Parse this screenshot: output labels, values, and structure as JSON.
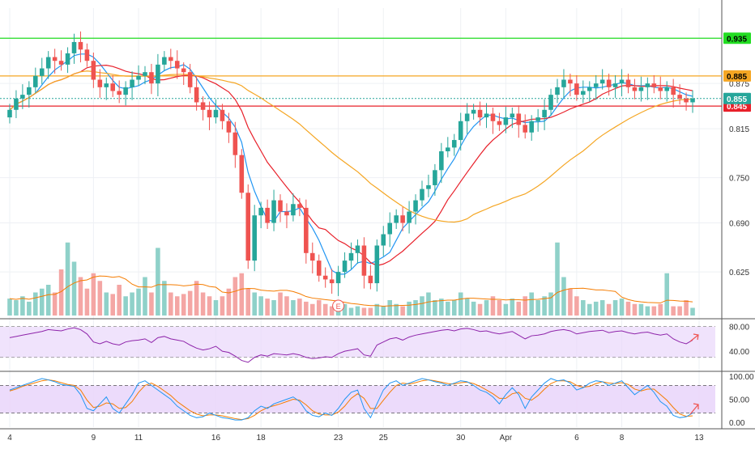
{
  "chart_data": {
    "type": "candlestick",
    "price_axis": {
      "ticks": [
        "0.935",
        "0.875",
        "0.815",
        "0.750",
        "0.690",
        "0.625"
      ],
      "tick_values": [
        0.935,
        0.875,
        0.815,
        0.75,
        0.69,
        0.625
      ],
      "ylim": [
        0.565,
        0.975
      ]
    },
    "x_labels": [
      "4",
      "9",
      "11",
      "16",
      "18",
      "23",
      "25",
      "30",
      "Apr",
      "6",
      "8",
      "13"
    ],
    "x_label_index": [
      0,
      13,
      20,
      32,
      39,
      51,
      58,
      70,
      77,
      88,
      95,
      107
    ],
    "horizontal_levels": [
      {
        "value": 0.935,
        "label": "0.935",
        "color": "#22dd22",
        "text_color": "#000000"
      },
      {
        "value": 0.885,
        "label": "0.885",
        "color": "#f5a623",
        "text_color": "#000000"
      },
      {
        "value": 0.845,
        "label": "0.845",
        "color": "#e8202a",
        "text_color": "#ffffff"
      }
    ],
    "last_price": {
      "value": 0.855,
      "label": "0.855",
      "color": "#26a69a"
    },
    "earnings_marker": "E",
    "colors": {
      "up": "#26a69a",
      "down": "#ef5350",
      "ma_fast": "#2196f3",
      "ma_mid": "#e8202a",
      "ma_slow": "#f5a623",
      "rsi": "#8e24aa",
      "stoch_k": "#2196f3",
      "stoch_d": "#f57c00",
      "panel_fill": "#ead7fb"
    },
    "candles_close": [
      0.84,
      0.855,
      0.86,
      0.87,
      0.885,
      0.895,
      0.91,
      0.905,
      0.9,
      0.915,
      0.93,
      0.92,
      0.905,
      0.88,
      0.87,
      0.875,
      0.865,
      0.86,
      0.87,
      0.88,
      0.885,
      0.89,
      0.875,
      0.9,
      0.91,
      0.905,
      0.895,
      0.89,
      0.87,
      0.85,
      0.84,
      0.83,
      0.84,
      0.825,
      0.81,
      0.78,
      0.73,
      0.64,
      0.7,
      0.71,
      0.69,
      0.72,
      0.705,
      0.7,
      0.715,
      0.71,
      0.65,
      0.64,
      0.62,
      0.615,
      0.61,
      0.625,
      0.64,
      0.65,
      0.66,
      0.62,
      0.61,
      0.66,
      0.675,
      0.69,
      0.7,
      0.69,
      0.705,
      0.72,
      0.735,
      0.74,
      0.76,
      0.785,
      0.79,
      0.8,
      0.825,
      0.835,
      0.84,
      0.83,
      0.835,
      0.825,
      0.82,
      0.83,
      0.835,
      0.82,
      0.81,
      0.825,
      0.83,
      0.84,
      0.86,
      0.87,
      0.88,
      0.875,
      0.86,
      0.865,
      0.87,
      0.875,
      0.88,
      0.87,
      0.875,
      0.88,
      0.87,
      0.865,
      0.87,
      0.875,
      0.87,
      0.865,
      0.87,
      0.86,
      0.855,
      0.85,
      0.855
    ],
    "volume": [
      0.22,
      0.2,
      0.25,
      0.18,
      0.3,
      0.35,
      0.4,
      0.3,
      0.6,
      0.95,
      0.7,
      0.5,
      0.35,
      0.55,
      0.45,
      0.3,
      0.28,
      0.4,
      0.25,
      0.3,
      0.35,
      0.5,
      0.3,
      0.88,
      0.45,
      0.3,
      0.25,
      0.28,
      0.32,
      0.45,
      0.3,
      0.25,
      0.2,
      0.25,
      0.35,
      0.5,
      0.55,
      0.35,
      0.3,
      0.25,
      0.22,
      0.2,
      0.3,
      0.25,
      0.2,
      0.22,
      0.18,
      0.15,
      0.2,
      0.15,
      0.12,
      0.1,
      0.15,
      0.1,
      0.12,
      0.1,
      0.1,
      0.15,
      0.12,
      0.2,
      0.15,
      0.12,
      0.18,
      0.2,
      0.25,
      0.3,
      0.2,
      0.22,
      0.18,
      0.2,
      0.3,
      0.22,
      0.18,
      0.15,
      0.2,
      0.25,
      0.2,
      0.15,
      0.22,
      0.18,
      0.25,
      0.3,
      0.2,
      0.25,
      0.3,
      0.95,
      0.5,
      0.35,
      0.25,
      0.2,
      0.15,
      0.18,
      0.2,
      0.15,
      0.2,
      0.22,
      0.18,
      0.15,
      0.15,
      0.12,
      0.12,
      0.15,
      0.55,
      0.12,
      0.12,
      0.2,
      0.1
    ],
    "rsi": {
      "axis_ticks": [
        "80.00",
        "40.00"
      ],
      "tick_values": [
        80,
        40
      ],
      "upper": 80,
      "lower": 30,
      "values": [
        62,
        64,
        66,
        68,
        70,
        72,
        75,
        74,
        73,
        76,
        78,
        75,
        68,
        55,
        52,
        56,
        52,
        50,
        55,
        57,
        58,
        60,
        54,
        62,
        64,
        60,
        58,
        56,
        50,
        45,
        42,
        44,
        48,
        40,
        38,
        32,
        25,
        22,
        30,
        34,
        32,
        36,
        35,
        34,
        36,
        34,
        30,
        28,
        29,
        31,
        30,
        36,
        40,
        42,
        44,
        34,
        32,
        50,
        55,
        60,
        62,
        58,
        63,
        66,
        68,
        70,
        72,
        74,
        75,
        73,
        76,
        77,
        75,
        72,
        73,
        70,
        68,
        70,
        72,
        66,
        60,
        65,
        66,
        68,
        72,
        74,
        75,
        73,
        68,
        70,
        72,
        73,
        74,
        70,
        72,
        73,
        70,
        68,
        70,
        71,
        68,
        66,
        68,
        60,
        55,
        52,
        58
      ]
    },
    "stoch": {
      "axis_ticks": [
        "100.00",
        "50.00",
        "0.00"
      ],
      "tick_values": [
        100,
        50,
        0
      ],
      "upper": 80,
      "lower": 20,
      "k": [
        70,
        75,
        80,
        85,
        90,
        95,
        92,
        88,
        82,
        80,
        78,
        60,
        30,
        25,
        40,
        55,
        30,
        20,
        40,
        60,
        85,
        90,
        80,
        70,
        60,
        50,
        35,
        25,
        15,
        10,
        12,
        20,
        15,
        10,
        8,
        5,
        5,
        10,
        25,
        35,
        30,
        40,
        45,
        50,
        55,
        45,
        25,
        15,
        12,
        20,
        15,
        30,
        50,
        65,
        70,
        30,
        10,
        40,
        70,
        85,
        90,
        80,
        85,
        90,
        95,
        92,
        88,
        85,
        80,
        85,
        90,
        88,
        80,
        70,
        65,
        55,
        40,
        60,
        75,
        60,
        30,
        55,
        70,
        85,
        95,
        90,
        92,
        85,
        70,
        75,
        85,
        90,
        88,
        80,
        85,
        90,
        75,
        60,
        70,
        80,
        65,
        45,
        35,
        15,
        10,
        12,
        20
      ],
      "d": [
        68,
        72,
        78,
        82,
        86,
        90,
        92,
        90,
        86,
        82,
        80,
        70,
        48,
        32,
        35,
        42,
        40,
        30,
        32,
        45,
        65,
        80,
        85,
        78,
        68,
        58,
        45,
        35,
        25,
        18,
        14,
        16,
        16,
        14,
        11,
        8,
        6,
        8,
        15,
        25,
        32,
        36,
        40,
        45,
        50,
        48,
        38,
        25,
        18,
        16,
        16,
        22,
        35,
        52,
        62,
        52,
        30,
        30,
        48,
        65,
        80,
        85,
        83,
        86,
        90,
        92,
        90,
        87,
        84,
        83,
        86,
        87,
        84,
        78,
        70,
        62,
        52,
        52,
        62,
        65,
        52,
        48,
        58,
        72,
        84,
        90,
        90,
        88,
        80,
        76,
        78,
        84,
        88,
        85,
        84,
        86,
        82,
        72,
        68,
        72,
        72,
        60,
        48,
        32,
        18,
        13,
        14
      ]
    }
  }
}
